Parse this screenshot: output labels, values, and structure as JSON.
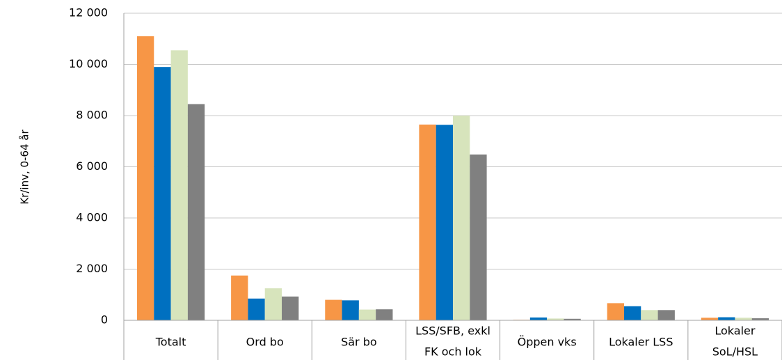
{
  "chart_data": {
    "type": "bar",
    "y_label": "Kr/inv, 0-64 år",
    "categories": [
      [
        "Totalt"
      ],
      [
        "Ord bo"
      ],
      [
        "Sär bo"
      ],
      [
        "LSS/SFB, exkl",
        "FK och lok"
      ],
      [
        "Öppen vks"
      ],
      [
        "Lokaler LSS"
      ],
      [
        "Lokaler",
        "SoL/HSL"
      ]
    ],
    "series": [
      {
        "color": "#f79646",
        "values": [
          11100,
          1750,
          800,
          7650,
          20,
          670,
          100
        ]
      },
      {
        "color": "#0070c0",
        "values": [
          9900,
          850,
          780,
          7640,
          110,
          550,
          120
        ]
      },
      {
        "color": "#d7e4bc",
        "values": [
          10550,
          1250,
          420,
          8000,
          70,
          400,
          100
        ]
      },
      {
        "color": "#808080",
        "values": [
          8450,
          930,
          430,
          6480,
          60,
          400,
          80
        ]
      }
    ],
    "ylim": [
      0,
      12000
    ],
    "yticks": [
      0,
      {
        "value": 2000,
        "label": "2 000"
      },
      {
        "value": 4000,
        "label": "4 000"
      },
      {
        "value": 6000,
        "label": "6 000"
      },
      {
        "value": 8000,
        "label": "8 000"
      },
      {
        "value": 10000,
        "label": "10 000"
      },
      {
        "value": 12000,
        "label": "12 000"
      }
    ],
    "grid": true
  }
}
